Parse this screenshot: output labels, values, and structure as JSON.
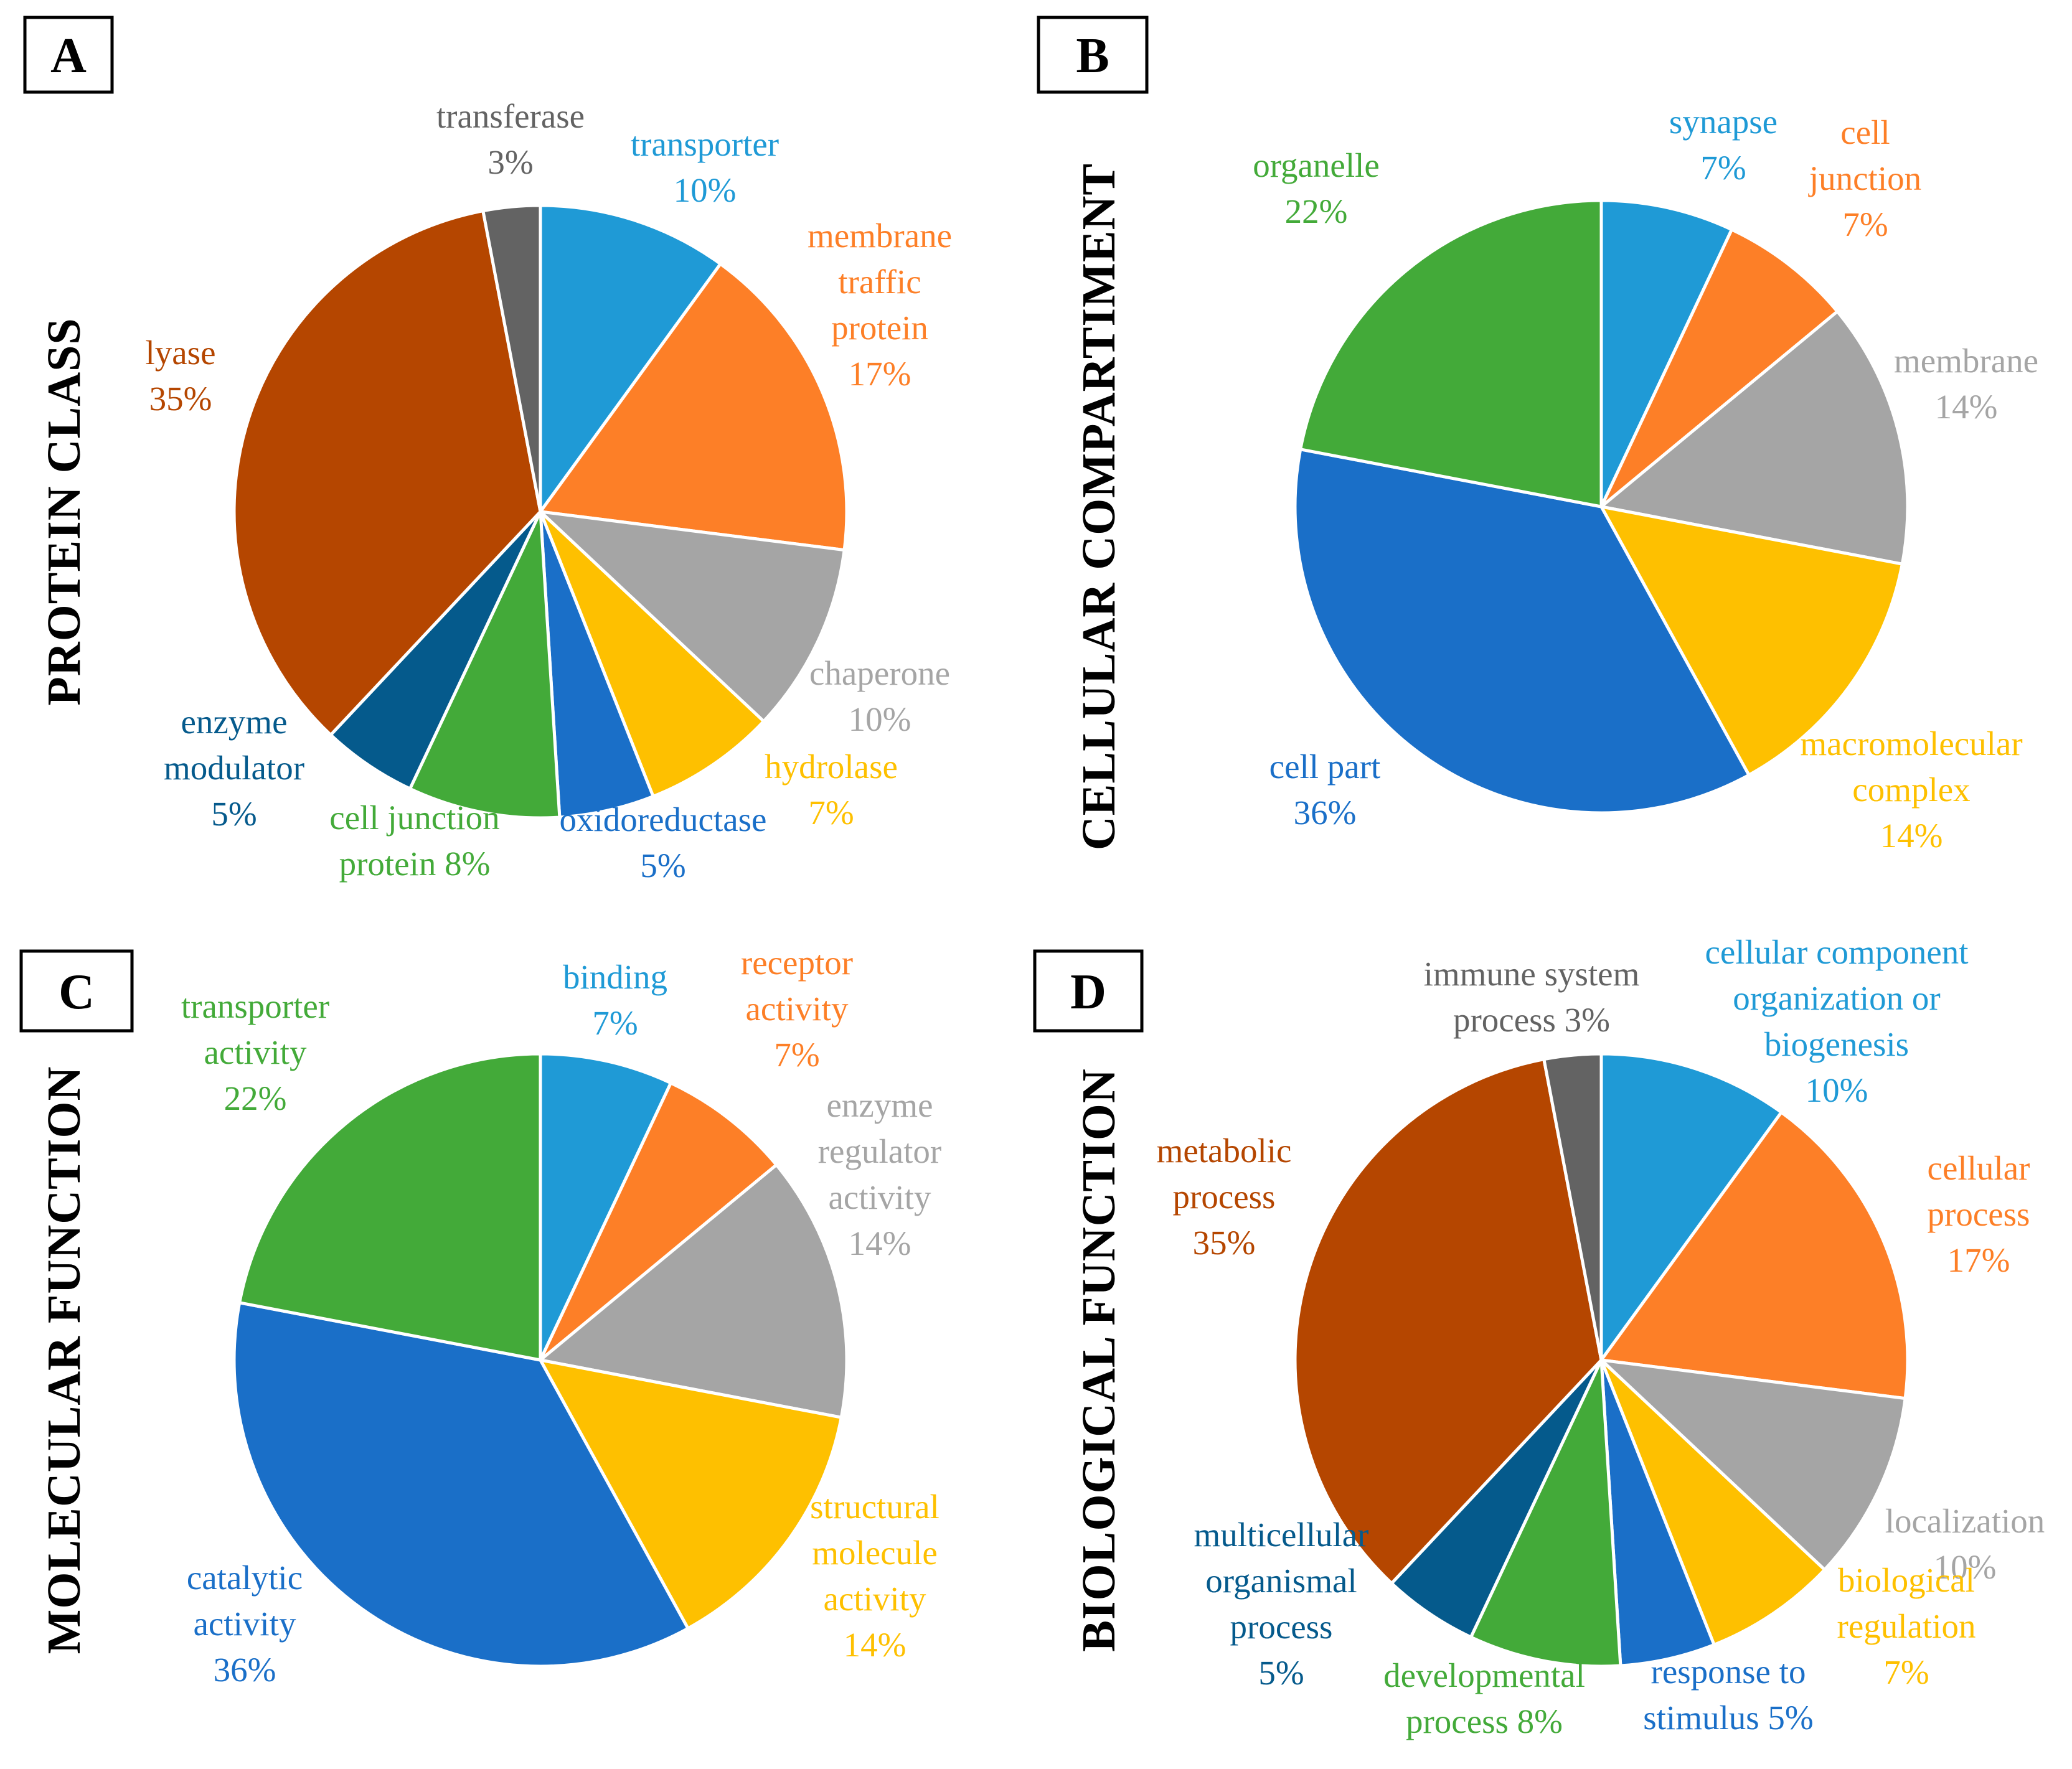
{
  "chart_data": [
    {
      "type": "pie",
      "panel": "A",
      "title": "PROTEIN CLASS",
      "slices": [
        {
          "name": "transporter",
          "lines": [
            "transporter",
            "10%"
          ],
          "value": 10,
          "color": "#1f9ad6"
        },
        {
          "name": "membrane traffic protein",
          "lines": [
            "membrane",
            "traffic",
            "protein",
            "17%"
          ],
          "value": 17,
          "color": "#fd7f27"
        },
        {
          "name": "chaperone",
          "lines": [
            "chaperone",
            "10%"
          ],
          "value": 10,
          "color": "#a5a5a5"
        },
        {
          "name": "hydrolase",
          "lines": [
            "hydrolase",
            "7%"
          ],
          "value": 7,
          "color": "#fec000"
        },
        {
          "name": "oxidoreductase",
          "lines": [
            "oxidoreductase",
            "5%"
          ],
          "value": 5,
          "color": "#1a6fc8"
        },
        {
          "name": "cell junction protein",
          "lines": [
            "cell junction",
            "protein 8%"
          ],
          "value": 8,
          "color": "#43aa39"
        },
        {
          "name": "enzyme modulator",
          "lines": [
            "enzyme",
            "modulator",
            "5%"
          ],
          "value": 5,
          "color": "#055a8c"
        },
        {
          "name": "lyase",
          "lines": [
            "lyase",
            "35%"
          ],
          "value": 35,
          "color": "#b54600"
        },
        {
          "name": "transferase",
          "lines": [
            "transferase",
            "3%"
          ],
          "value": 3,
          "color": "#636363"
        }
      ]
    },
    {
      "type": "pie",
      "panel": "B",
      "title": "CELLULAR COMPARTIMENT",
      "slices": [
        {
          "name": "synapse",
          "lines": [
            "synapse",
            "7%"
          ],
          "value": 7,
          "color": "#1f9ad6"
        },
        {
          "name": "cell junction",
          "lines": [
            "cell",
            "junction",
            "7%"
          ],
          "value": 7,
          "color": "#fd7f27"
        },
        {
          "name": "membrane",
          "lines": [
            "membrane",
            "14%"
          ],
          "value": 14,
          "color": "#a5a5a5"
        },
        {
          "name": "macromolecular complex",
          "lines": [
            "macromolecular",
            "complex",
            "14%"
          ],
          "value": 14,
          "color": "#fec000"
        },
        {
          "name": "cell part",
          "lines": [
            "cell part",
            "36%"
          ],
          "value": 36,
          "color": "#1a6fc8"
        },
        {
          "name": "organelle",
          "lines": [
            "organelle",
            "22%"
          ],
          "value": 22,
          "color": "#43aa39"
        }
      ]
    },
    {
      "type": "pie",
      "panel": "C",
      "title": "MOLECULAR FUNCTION",
      "slices": [
        {
          "name": "binding",
          "lines": [
            "binding",
            "7%"
          ],
          "value": 7,
          "color": "#1f9ad6"
        },
        {
          "name": "receptor activity",
          "lines": [
            "receptor",
            "activity",
            "7%"
          ],
          "value": 7,
          "color": "#fd7f27"
        },
        {
          "name": "enzyme regulator activity",
          "lines": [
            "enzyme",
            "regulator",
            "activity",
            "14%"
          ],
          "value": 14,
          "color": "#a5a5a5"
        },
        {
          "name": "structural molecule activity",
          "lines": [
            "structural",
            "molecule",
            "activity",
            "14%"
          ],
          "value": 14,
          "color": "#fec000"
        },
        {
          "name": "catalytic activity",
          "lines": [
            "catalytic",
            "activity",
            "36%"
          ],
          "value": 36,
          "color": "#1a6fc8"
        },
        {
          "name": "transporter activity",
          "lines": [
            "transporter",
            "activity",
            "22%"
          ],
          "value": 22,
          "color": "#43aa39"
        }
      ]
    },
    {
      "type": "pie",
      "panel": "D",
      "title": "BIOLOGICAL FUNCTION",
      "slices": [
        {
          "name": "cellular component organization or biogenesis",
          "lines": [
            "cellular component",
            "organization or",
            "biogenesis",
            "10%"
          ],
          "value": 10,
          "color": "#1f9ad6"
        },
        {
          "name": "cellular process",
          "lines": [
            "cellular",
            "process",
            "17%"
          ],
          "value": 17,
          "color": "#fd7f27"
        },
        {
          "name": "localization",
          "lines": [
            "localization",
            "10%"
          ],
          "value": 10,
          "color": "#a5a5a5"
        },
        {
          "name": "biological regulation",
          "lines": [
            "biological",
            "regulation",
            "7%"
          ],
          "value": 7,
          "color": "#fec000"
        },
        {
          "name": "response to stimulus",
          "lines": [
            "response to",
            "stimulus 5%"
          ],
          "value": 5,
          "color": "#1a6fc8"
        },
        {
          "name": "developmental process",
          "lines": [
            "developmental",
            "process 8%"
          ],
          "value": 8,
          "color": "#43aa39"
        },
        {
          "name": "multicellular organismal process",
          "lines": [
            "multicellular",
            "organismal",
            "process",
            "5%"
          ],
          "value": 5,
          "color": "#055a8c"
        },
        {
          "name": "metabolic process",
          "lines": [
            "metabolic",
            "process",
            "35%"
          ],
          "value": 35,
          "color": "#b54600"
        },
        {
          "name": "immune system process",
          "lines": [
            "immune system",
            "process 3%"
          ],
          "value": 3,
          "color": "#636363"
        }
      ]
    }
  ]
}
